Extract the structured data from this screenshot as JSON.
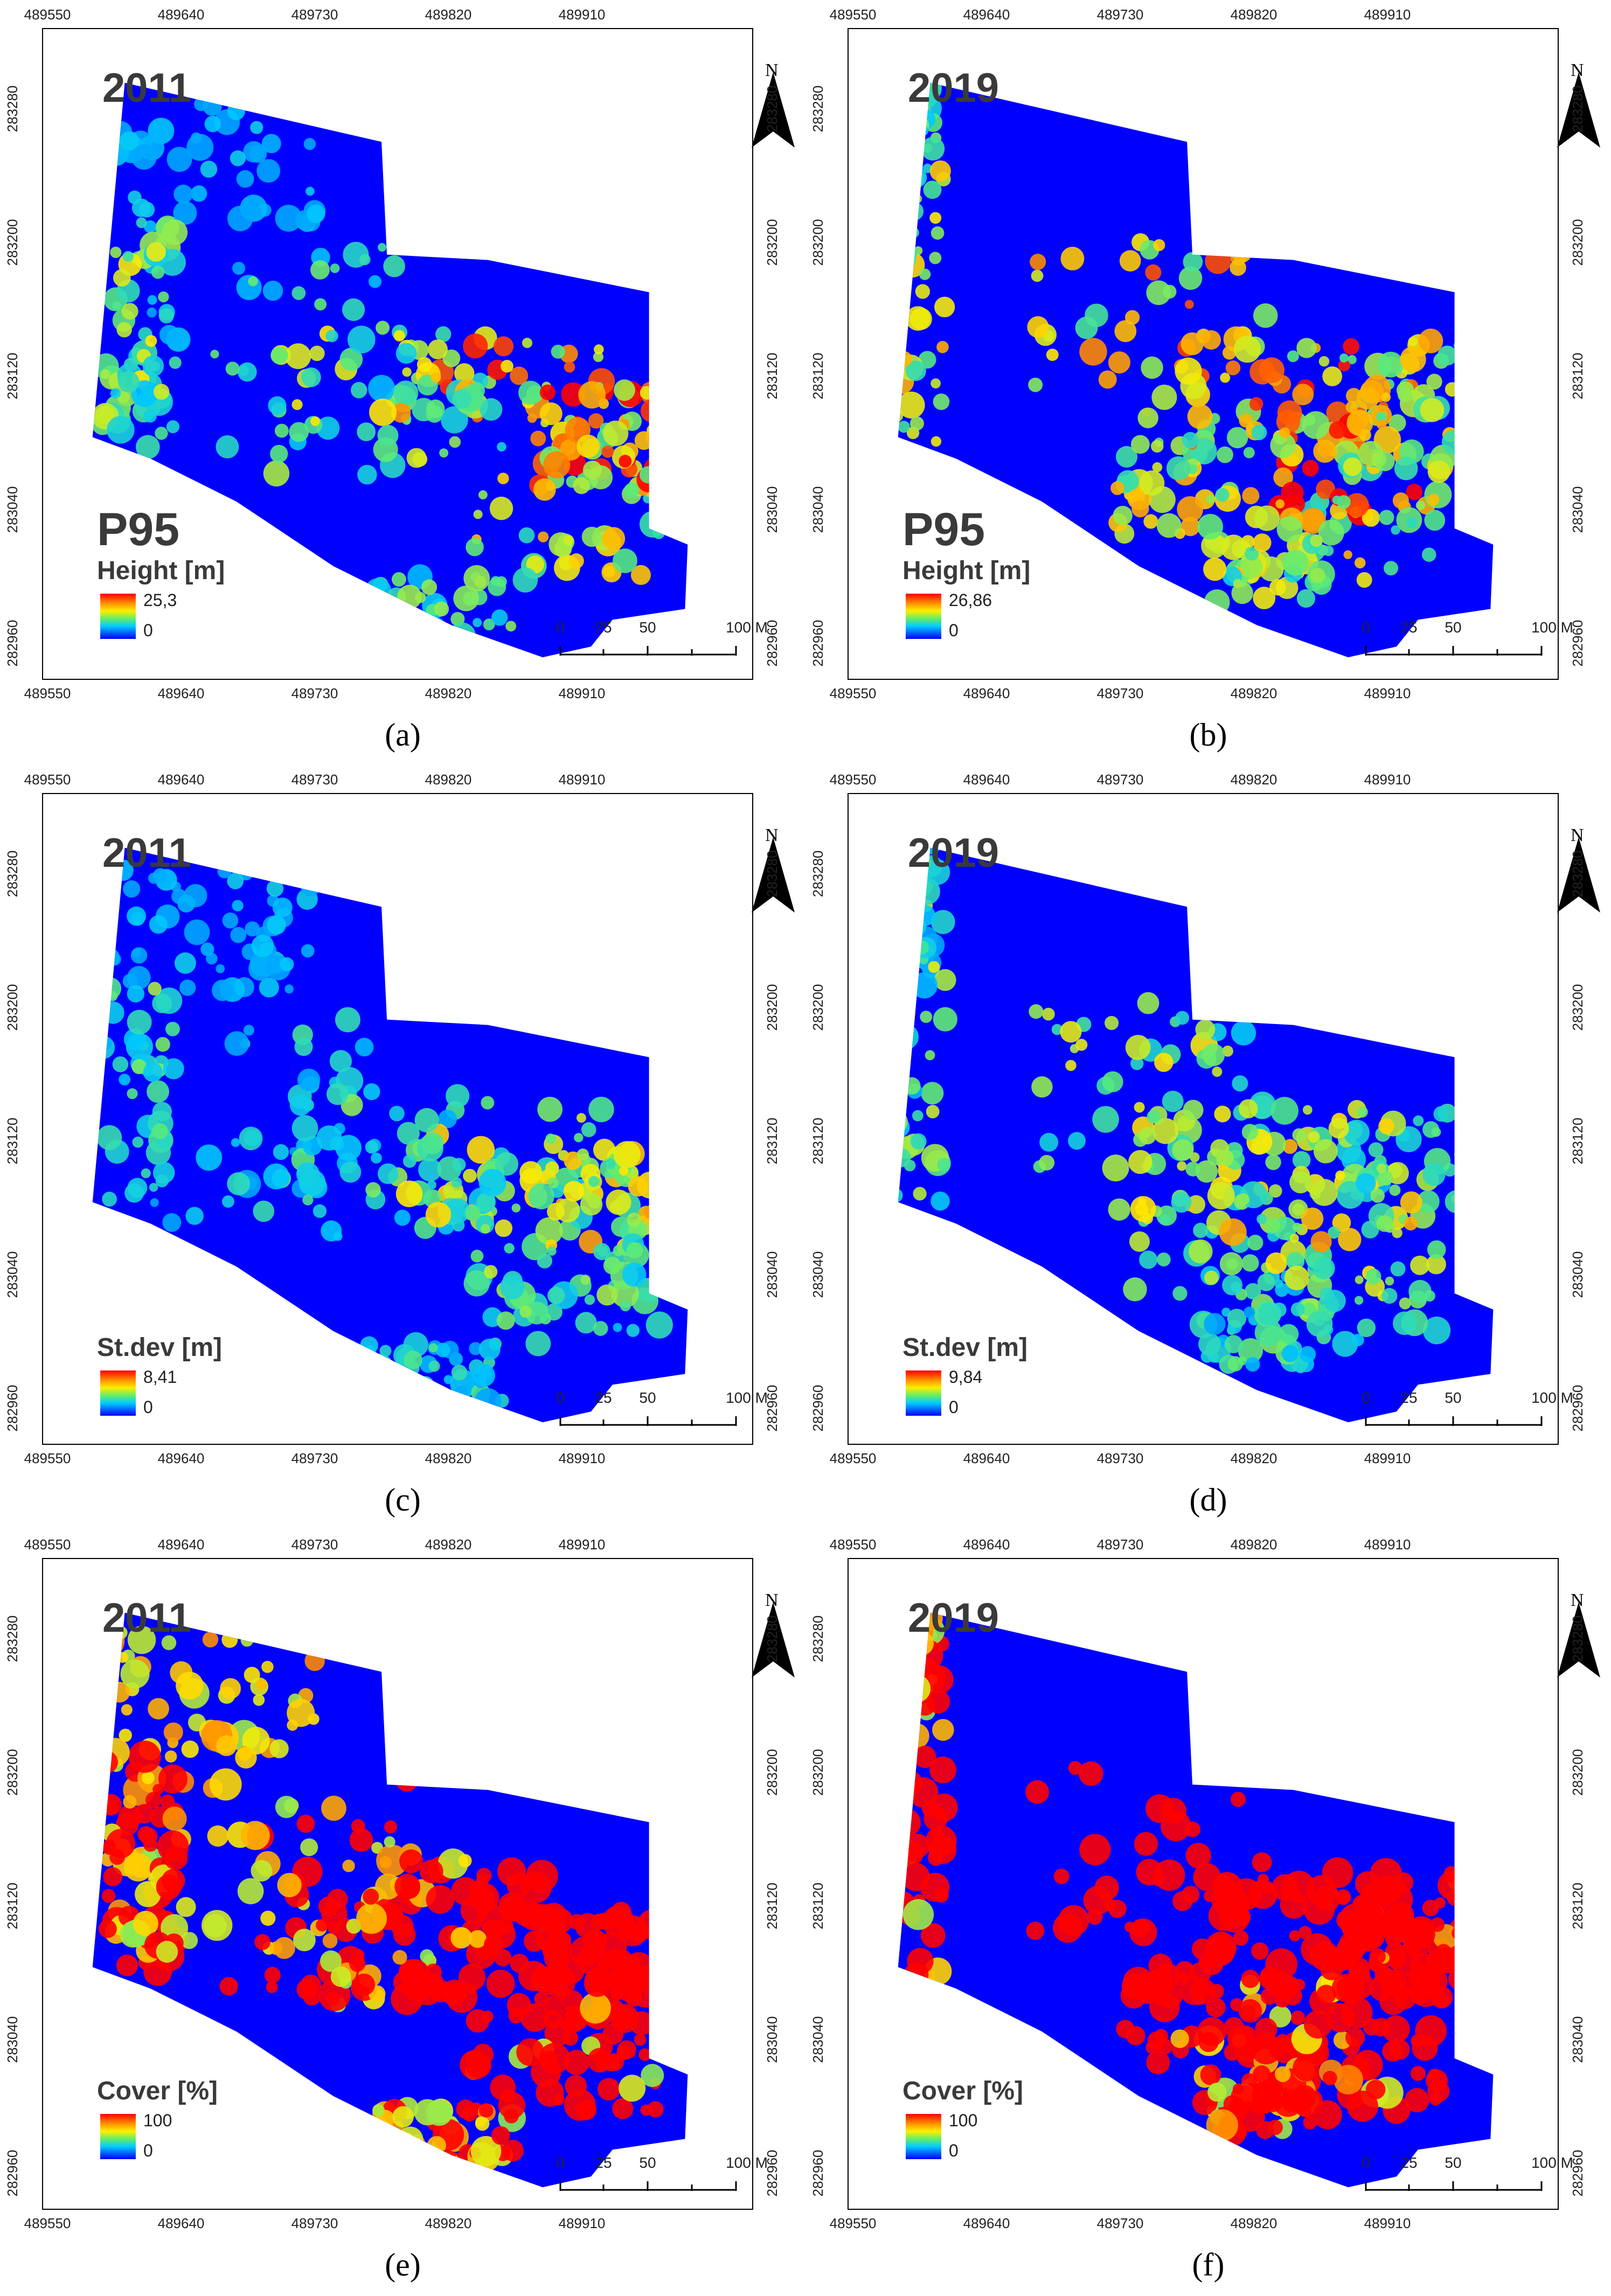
{
  "axis": {
    "x_ticks": [
      "489550",
      "489640",
      "489730",
      "489820",
      "489910"
    ],
    "y_ticks": [
      "283280",
      "283200",
      "283120",
      "283040",
      "282960"
    ]
  },
  "north_label": "N",
  "scale_bar": {
    "labels": [
      "0",
      "25",
      "50",
      "100 M"
    ]
  },
  "colors": {
    "low": "#0000ff",
    "mid": "#00ccff",
    "high": "#ff0000",
    "background": "#ffffff"
  },
  "panels": [
    {
      "id": "a",
      "caption": "(a)",
      "year": "2011",
      "metric": "P95",
      "legend_title": "Height [m]",
      "legend_max": "25,3",
      "legend_min": "0",
      "variable": "height",
      "max_value": 25.3
    },
    {
      "id": "b",
      "caption": "(b)",
      "year": "2019",
      "metric": "P95",
      "legend_title": "Height [m]",
      "legend_max": "26,86",
      "legend_min": "0",
      "variable": "height",
      "max_value": 26.86
    },
    {
      "id": "c",
      "caption": "(c)",
      "year": "2011",
      "metric": "",
      "legend_title": "St.dev [m]",
      "legend_max": "8,41",
      "legend_min": "0",
      "variable": "stdev",
      "max_value": 8.41
    },
    {
      "id": "d",
      "caption": "(d)",
      "year": "2019",
      "metric": "",
      "legend_title": "St.dev [m]",
      "legend_max": "9,84",
      "legend_min": "0",
      "variable": "stdev",
      "max_value": 9.84
    },
    {
      "id": "e",
      "caption": "(e)",
      "year": "2011",
      "metric": "",
      "legend_title": "Cover [%]",
      "legend_max": "100",
      "legend_min": "0",
      "variable": "cover",
      "max_value": 100
    },
    {
      "id": "f",
      "caption": "(f)",
      "year": "2019",
      "metric": "",
      "legend_title": "Cover [%]",
      "legend_max": "100",
      "legend_min": "0",
      "variable": "cover",
      "max_value": 100
    }
  ]
}
